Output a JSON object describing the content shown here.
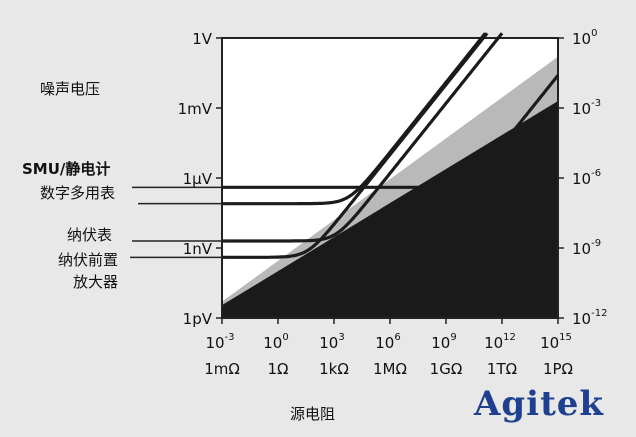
{
  "chart_data": {
    "type": "line",
    "ylabel": "噪声电压",
    "xlabel": "源电阻",
    "x_ticks_exponent": [
      "10-3",
      "100",
      "103",
      "106",
      "109",
      "1012",
      "1015"
    ],
    "x_ticks_units": [
      "1mΩ",
      "1Ω",
      "1kΩ",
      "1MΩ",
      "1GΩ",
      "1TΩ",
      "1PΩ"
    ],
    "y_left_ticks": [
      "1V",
      "1mV",
      "1μV",
      "1nV",
      "1pV"
    ],
    "y_right_ticks": [
      "10^0",
      "10^-3",
      "10^-6",
      "10^-9",
      "10^-12"
    ],
    "xlim_log10_ohm": [
      -3,
      15
    ],
    "ylim_log10_V": [
      -12,
      0
    ],
    "series": [
      {
        "name": "SMU/静电计",
        "floor_log10_V": -6.4,
        "knee_log10_ohm": 10.2
      },
      {
        "name": "数字多用表",
        "floor_log10_V": -7.1,
        "knee_log10_ohm": 3.8
      },
      {
        "name": "纳伏表",
        "floor_log10_V": -8.7,
        "knee_log10_ohm": 3.1
      },
      {
        "name": "纳伏前置放大器",
        "floor_log10_V": -9.4,
        "knee_log10_ohm": 1.6
      }
    ],
    "noise_regions": [
      {
        "name": "",
        "color": "#b9b9b9"
      },
      {
        "name": "",
        "color": "#1a1a1a"
      }
    ]
  },
  "watermark": "Agitek",
  "colors": {
    "plot_bg": "#ffffff",
    "light_region": "#b9b9b9",
    "dark_region": "#1a1a1a",
    "lines": "#1b1b1b",
    "brand": "#1f3f8f"
  }
}
